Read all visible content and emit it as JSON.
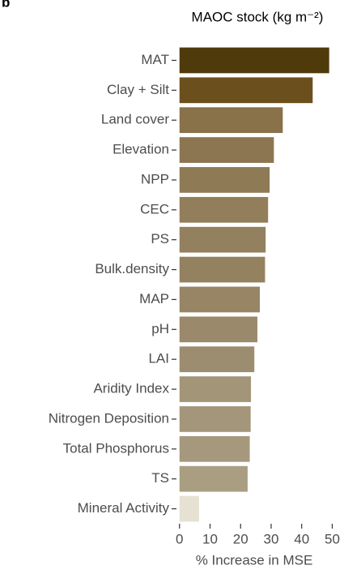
{
  "chart_data": {
    "type": "barh",
    "panel_label": "b",
    "title": "MAOC stock (kg m⁻²)",
    "categories": [
      "MAT",
      "Clay + Silt",
      "Land cover",
      "Elevation",
      "NPP",
      "CEC",
      "PS",
      "Bulk.density",
      "MAP",
      "pH",
      "LAI",
      "Aridity Index",
      "Nitrogen Deposition",
      "Total Phosphorus",
      "TS",
      "Mineral Activity"
    ],
    "values": [
      49,
      43.6,
      33.8,
      30.9,
      29.5,
      29,
      28.2,
      28,
      26.3,
      25.5,
      24.5,
      23.4,
      23.3,
      23,
      22.3,
      6.4
    ],
    "colors": [
      "#4f3a0c",
      "#6b4f1d",
      "#89714a",
      "#8c7651",
      "#8f7a56",
      "#927e5b",
      "#93805e",
      "#948160",
      "#978566",
      "#9a896b",
      "#9d8d70",
      "#a39577",
      "#a4967a",
      "#a6987c",
      "#aa9e82",
      "#e6e1d3"
    ],
    "xlabel": "% Increase in MSE",
    "xlim": [
      -1,
      52
    ],
    "xticks": [
      0,
      10,
      20,
      30,
      40,
      50
    ]
  }
}
